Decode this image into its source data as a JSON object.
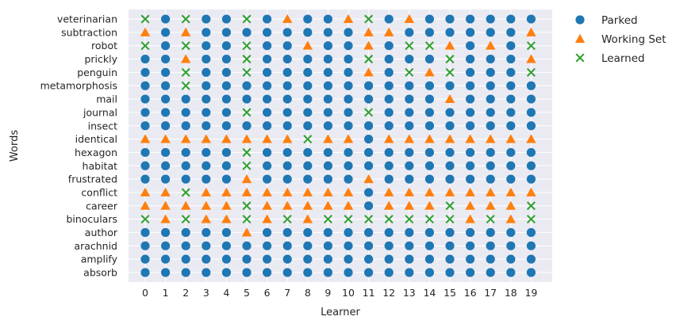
{
  "chart_data": {
    "type": "scatter",
    "title": "",
    "xlabel": "Learner",
    "ylabel": "Words",
    "x": [
      0,
      1,
      2,
      3,
      4,
      5,
      6,
      7,
      8,
      9,
      10,
      11,
      12,
      13,
      14,
      15,
      16,
      17,
      18,
      19
    ],
    "words": [
      "absorb",
      "amplify",
      "arachnid",
      "author",
      "binoculars",
      "career",
      "conflict",
      "frustrated",
      "habitat",
      "hexagon",
      "identical",
      "insect",
      "journal",
      "mail",
      "metamorphosis",
      "penguin",
      "prickly",
      "robot",
      "subtraction",
      "veterinarian"
    ],
    "grid": true,
    "legend_position": "outside-top-right",
    "legend": [
      {
        "code": "P",
        "name": "Parked",
        "marker": "circle",
        "color": "#1f77b4"
      },
      {
        "code": "W",
        "name": "Working Set",
        "marker": "triangle",
        "color": "#ff7f0e"
      },
      {
        "code": "L",
        "name": "Learned",
        "marker": "x",
        "color": "#2ca02c"
      }
    ],
    "states_by_word": {
      "absorb": "PPPPPPPPPPPPPPPPPPPP",
      "amplify": "PPPPPPPPPPPPPPPPPPPP",
      "arachnid": "PPPPPPPPPPPPPPPPPPPP",
      "author": "PPPPPWPPPPPPPPPPPPPP",
      "binoculars": "LWLWWLWLWLLLLLLLWLWL",
      "career": "WWWWWLWWWWWPWWWLWWWL",
      "conflict": "WWLWWWWWWWWPWWWWWWWW",
      "frustrated": "PPPPPWPPPPPWPPPPPPPP",
      "habitat": "PPPPPLPPPPPPPPPPPPPP",
      "hexagon": "PPPPPLPPPPPPPPPPPPPP",
      "identical": "WWWWWWWWLWWPWWWWWWWW",
      "insect": "PPPPPPPPPPPPPPPPPPPP",
      "journal": "PPPPPLPPPPPLPPPPPPPP",
      "mail": "PPPPPPPPPPPPPPPWPPPP",
      "metamorphosis": "PPLPPPPPPPPPPPPPPPPP",
      "penguin": "PPLPPLPPPPPWPLWLPPPL",
      "prickly": "PPWPPLPPPPPLPPPLPPPW",
      "robot": "LPLPPLPPWPPWPLLWPWPL",
      "subtraction": "WPWPPPPPPPPWWPPPPPPW",
      "veterinarian": "LPLPPLPWPPWLPWPPPPPP"
    }
  }
}
